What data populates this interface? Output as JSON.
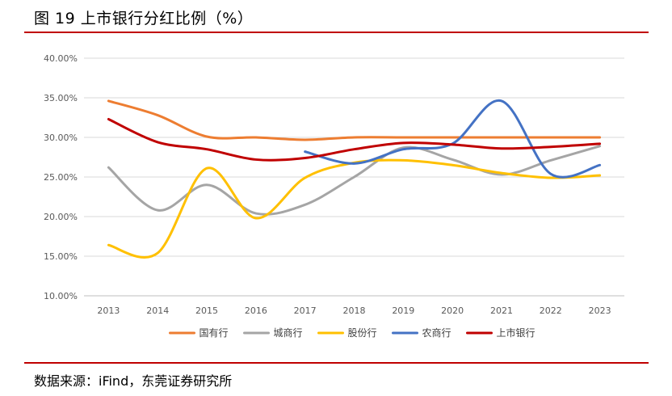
{
  "header": {
    "title": "图 19 上市银行分红比例（%）"
  },
  "footer": {
    "source": "数据来源：iFind，东莞证券研究所"
  },
  "chart_data": {
    "type": "line",
    "title": "",
    "xlabel": "",
    "ylabel": "",
    "x": [
      "2013",
      "2014",
      "2015",
      "2016",
      "2017",
      "2018",
      "2019",
      "2020",
      "2021",
      "2022",
      "2023"
    ],
    "ylim": [
      10,
      40
    ],
    "yticks": [
      "10.00%",
      "15.00%",
      "20.00%",
      "25.00%",
      "30.00%",
      "35.00%",
      "40.00%"
    ],
    "grid": "horizontal",
    "legend_position": "bottom",
    "series": [
      {
        "name": "国有行",
        "color": "#ED7D31",
        "values": [
          34.6,
          32.8,
          30.1,
          30.0,
          29.7,
          30.0,
          30.0,
          30.0,
          30.0,
          30.0,
          30.0
        ]
      },
      {
        "name": "城商行",
        "color": "#A5A5A5",
        "values": [
          26.2,
          20.8,
          24.0,
          20.4,
          21.5,
          25.0,
          28.7,
          27.2,
          25.3,
          27.1,
          28.9
        ]
      },
      {
        "name": "股份行",
        "color": "#FFC000",
        "values": [
          16.4,
          15.4,
          26.1,
          19.8,
          24.9,
          26.8,
          27.1,
          26.5,
          25.5,
          24.9,
          25.2
        ]
      },
      {
        "name": "农商行",
        "color": "#4472C4",
        "values": [
          null,
          null,
          null,
          null,
          28.2,
          26.7,
          28.5,
          29.2,
          34.6,
          25.4,
          26.5
        ]
      },
      {
        "name": "上市银行",
        "color": "#C00000",
        "values": [
          32.3,
          29.4,
          28.5,
          27.2,
          27.4,
          28.5,
          29.3,
          29.1,
          28.6,
          28.8,
          29.2
        ]
      }
    ]
  }
}
